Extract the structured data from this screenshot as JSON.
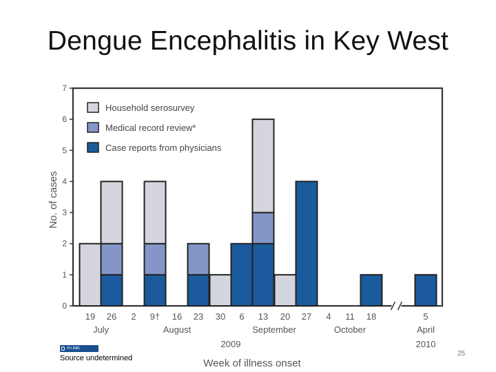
{
  "slide": {
    "title": "Dengue Encephalitis in Key West",
    "source": "Source undetermined",
    "badge_text": "PD-INEL",
    "page_number": "25"
  },
  "chart_data": {
    "type": "bar",
    "stacked": true,
    "ylabel": "No. of cases",
    "xlabel": "Week of illness onset",
    "ylim": [
      0,
      7
    ],
    "yticks": [
      0,
      1,
      2,
      3,
      4,
      5,
      6,
      7
    ],
    "grid": false,
    "legend_position": "top-left",
    "categories": [
      "19",
      "26",
      "2",
      "9†",
      "16",
      "23",
      "30",
      "6",
      "13",
      "20",
      "27",
      "4",
      "11",
      "18",
      "5"
    ],
    "month_labels": [
      {
        "label": "July",
        "start": 0,
        "end": 1
      },
      {
        "label": "August",
        "start": 2,
        "end": 6
      },
      {
        "label": "September",
        "start": 7,
        "end": 10
      },
      {
        "label": "October",
        "start": 11,
        "end": 13
      },
      {
        "label": "April",
        "start": 14,
        "end": 14
      }
    ],
    "year_labels": [
      {
        "label": "2009",
        "start": 0,
        "end": 13
      },
      {
        "label": "2010",
        "start": 14,
        "end": 14
      }
    ],
    "axis_break_after": "18",
    "series": [
      {
        "name": "Case reports from physicians",
        "color": "#1b5b9d",
        "values": [
          0,
          1,
          0,
          1,
          0,
          1,
          0,
          2,
          2,
          0,
          4,
          0,
          0,
          1,
          1
        ]
      },
      {
        "name": "Medical record review*",
        "color": "#8496c8",
        "values": [
          0,
          1,
          0,
          1,
          0,
          1,
          0,
          0,
          1,
          0,
          0,
          0,
          0,
          0,
          0
        ]
      },
      {
        "name": "Household serosurvey",
        "color": "#d4d5de",
        "values": [
          2,
          2,
          0,
          2,
          0,
          0,
          1,
          0,
          3,
          1,
          0,
          0,
          0,
          0,
          0
        ]
      }
    ],
    "legend_order": [
      "Household serosurvey",
      "Medical record review*",
      "Case reports from physicians"
    ]
  }
}
